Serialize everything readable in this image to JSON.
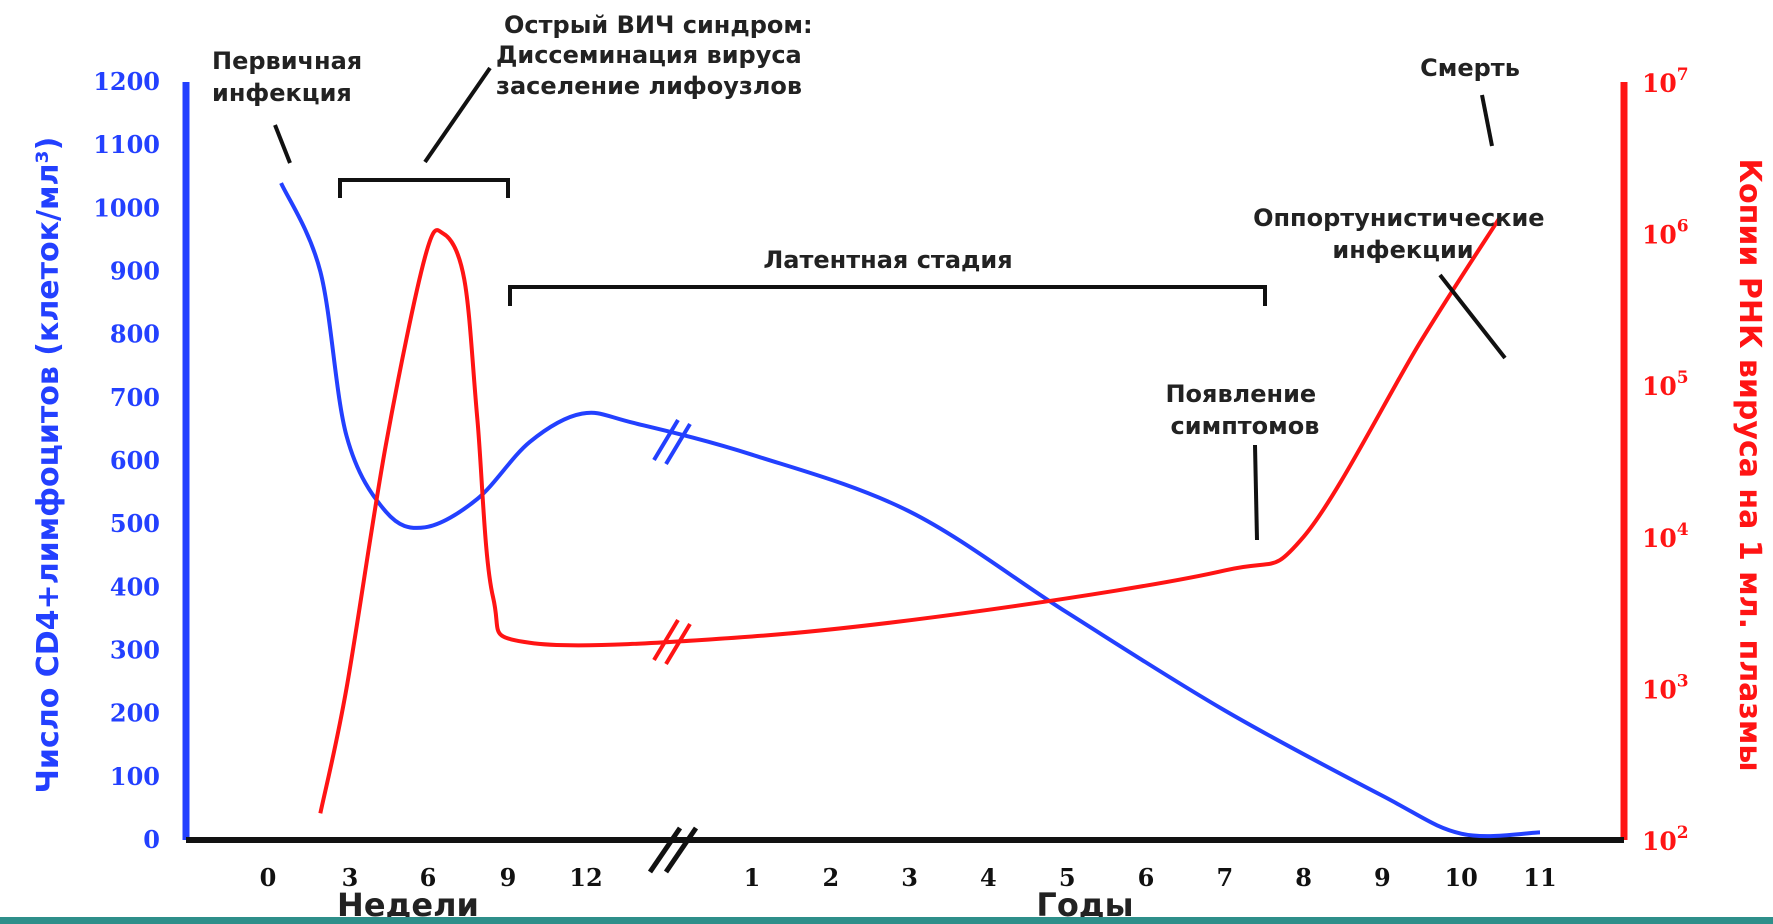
{
  "chart_data": {
    "type": "line",
    "title": "",
    "x_groups": [
      {
        "label": "Недели",
        "ticks": [
          "0",
          "3",
          "6",
          "9",
          "12"
        ]
      },
      {
        "label": "Годы",
        "ticks": [
          "1",
          "2",
          "3",
          "4",
          "5",
          "6",
          "7",
          "8",
          "9",
          "10",
          "11"
        ]
      }
    ],
    "left_axis": {
      "label": "Число CD4+лимфоцитов (клеток/мл³)",
      "ticks": [
        "0",
        "100",
        "200",
        "300",
        "400",
        "500",
        "600",
        "700",
        "800",
        "900",
        "1000",
        "1100",
        "1200"
      ],
      "range": [
        0,
        1200
      ],
      "color": "#2340ff"
    },
    "right_axis": {
      "label": "Копии РНК вируса на 1 мл. плазмы",
      "ticks": [
        {
          "base": "10",
          "exp": "2"
        },
        {
          "base": "10",
          "exp": "3"
        },
        {
          "base": "10",
          "exp": "4"
        },
        {
          "base": "10",
          "exp": "5"
        },
        {
          "base": "10",
          "exp": "6"
        },
        {
          "base": "10",
          "exp": "7"
        }
      ],
      "scale": "log",
      "range": [
        100,
        10000000
      ],
      "color": "#ff1414"
    },
    "series": [
      {
        "color": "#2340ff",
        "axis": "left",
        "points": [
          {
            "x": "нед 0.5",
            "y": 1040
          },
          {
            "x": "нед 2",
            "y": 900
          },
          {
            "x": "нед 3",
            "y": 640
          },
          {
            "x": "нед 4.5",
            "y": 520
          },
          {
            "x": "нед 6",
            "y": 495
          },
          {
            "x": "нед 8",
            "y": 540
          },
          {
            "x": "нед 10",
            "y": 630
          },
          {
            "x": "нед 12",
            "y": 675
          },
          {
            "x": "нед 14",
            "y": 660
          },
          {
            "x": "год 1",
            "y": 610
          },
          {
            "x": "год 3",
            "y": 520
          },
          {
            "x": "год 5",
            "y": 360
          },
          {
            "x": "год 7",
            "y": 205
          },
          {
            "x": "год 9",
            "y": 70
          },
          {
            "x": "год 10",
            "y": 10
          },
          {
            "x": "год 11",
            "y": 12
          }
        ]
      },
      {
        "color": "#ff1414",
        "axis": "right",
        "points": [
          {
            "x": "нед 2",
            "y": 150
          },
          {
            "x": "нед 3",
            "y": 1000
          },
          {
            "x": "нед 4.5",
            "y": 40000
          },
          {
            "x": "нед 6",
            "y": 700000
          },
          {
            "x": "нед 6.7",
            "y": 1000000
          },
          {
            "x": "нед 7.5",
            "y": 500000
          },
          {
            "x": "нед 8",
            "y": 60000
          },
          {
            "x": "нед 8.6",
            "y": 4000
          },
          {
            "x": "нед 10",
            "y": 2000
          },
          {
            "x": "год 1",
            "y": 2200
          },
          {
            "x": "год 4",
            "y": 3300
          },
          {
            "x": "год 7",
            "y": 6000
          },
          {
            "x": "год 8",
            "y": 10000
          },
          {
            "x": "год 9.5",
            "y": 200000
          },
          {
            "x": "год 10.5",
            "y": 1300000
          }
        ]
      }
    ],
    "annotations": [
      {
        "text": "Первичная\nинфекция"
      },
      {
        "text": "Острый ВИЧ синдром:\nДиссеминация вируса\nзаселение лифоузлов"
      },
      {
        "text": "Латентная стадия"
      },
      {
        "text": "Появление\nсимптомов"
      },
      {
        "text": "Оппортунистические\nинфекции"
      },
      {
        "text": "Смерть"
      }
    ],
    "grid": false,
    "legend": "none"
  }
}
